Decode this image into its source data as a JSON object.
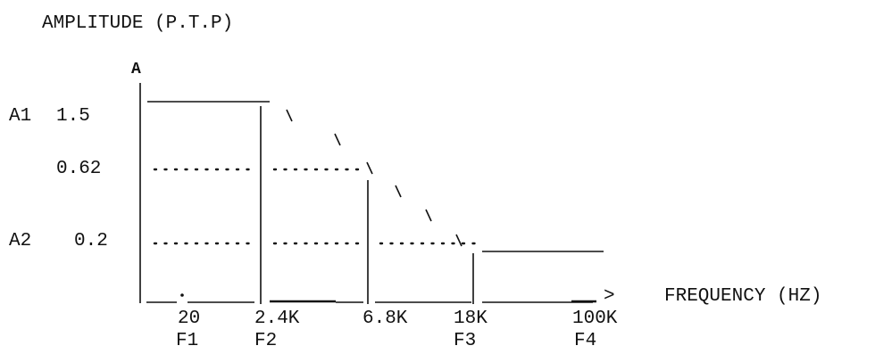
{
  "title": "AMPLITUDE (P.T.P)",
  "y_axis_letter": "A",
  "x_axis_label": "FREQUENCY (HZ)",
  "x_arrow_glyph": ">",
  "slash_glyph": "\\",
  "amplitude_labels": {
    "a1_name": "A1",
    "a1_value": "1.5",
    "mid_value": "0.62",
    "a2_name": "A2",
    "a2_value": "0.2"
  },
  "frequency_ticks": [
    {
      "value": "20",
      "name": "F1"
    },
    {
      "value": "2.4K",
      "name": "F2"
    },
    {
      "value": "6.8K",
      "name": ""
    },
    {
      "value": "18K",
      "name": "F3"
    },
    {
      "value": "100K",
      "name": "F4"
    }
  ],
  "colors": {
    "ink": "#111111",
    "background": "#ffffff"
  }
}
